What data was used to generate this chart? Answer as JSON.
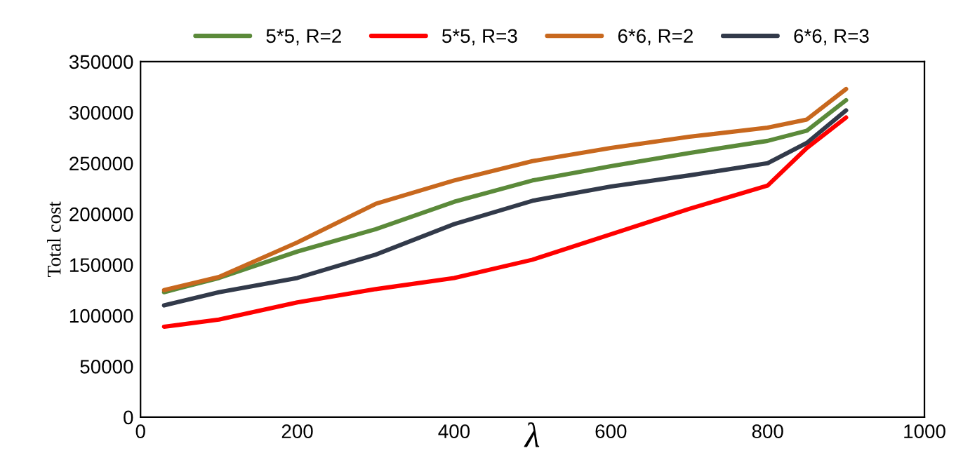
{
  "chart_data": {
    "type": "line",
    "xlabel": "λ",
    "ylabel": "Total cost",
    "legend": "top",
    "grid": false,
    "marker": "none",
    "line_style": "solid",
    "x": [
      30,
      100,
      200,
      300,
      400,
      500,
      600,
      700,
      800,
      850,
      900
    ],
    "xlim": [
      0,
      1000
    ],
    "xticks": [
      0,
      200,
      400,
      600,
      800,
      1000
    ],
    "ylim": [
      0,
      350000
    ],
    "yticks": [
      0,
      50000,
      100000,
      150000,
      200000,
      250000,
      300000,
      350000
    ],
    "series": [
      {
        "name": "5*5, R=2",
        "color": "#5b8a3a",
        "values": [
          123000,
          137000,
          163000,
          185000,
          212000,
          233000,
          247000,
          260000,
          272000,
          282000,
          312000
        ]
      },
      {
        "name": "5*5, R=3",
        "color": "#ff0000",
        "values": [
          89000,
          96000,
          113000,
          126000,
          137000,
          155000,
          180000,
          205000,
          228000,
          265000,
          295000
        ]
      },
      {
        "name": "6*6, R=2",
        "color": "#c8681e",
        "values": [
          125000,
          138000,
          172000,
          210000,
          233000,
          252000,
          265000,
          276000,
          285000,
          293000,
          323000
        ]
      },
      {
        "name": "6*6, R=3",
        "color": "#323a4a",
        "values": [
          110000,
          123000,
          137000,
          160000,
          190000,
          213000,
          227000,
          238000,
          250000,
          270000,
          302000
        ]
      }
    ]
  }
}
